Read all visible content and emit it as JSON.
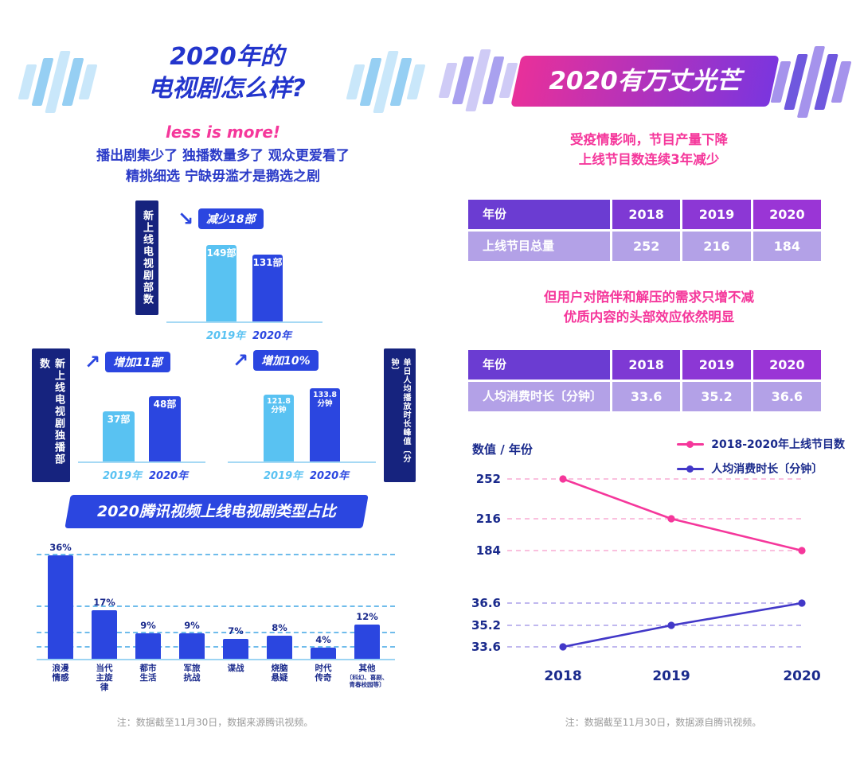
{
  "left": {
    "title_lines": [
      "2020年的",
      "电视剧怎么样?"
    ],
    "tagline": "less is more!",
    "intro_lines": [
      "播出剧集少了 独播数量多了 观众更爱看了",
      "精挑细选 宁缺毋滥才是鹅选之剧"
    ],
    "note": "注：数据截至11月30日，数据来源腾讯视频。"
  },
  "right": {
    "title": "2020有万丈光芒",
    "para1": [
      "受疫情影响，节目产量下降",
      "上线节目数连续3年减少"
    ],
    "para2": [
      "但用户对陪伴和解压的需求只增不减",
      "优质内容的头部效应依然明显"
    ],
    "note": "注：数据截至11月30日，数据源自腾讯视频。"
  },
  "colors": {
    "royal_blue": "#2B46E0",
    "light_blue": "#59C2F2",
    "navy": "#16237E",
    "pink": "#F5379B",
    "purple_line": "#4238C8",
    "table_header_purple": "#7E39D4",
    "table_row_lavender": "#B3A1E7"
  },
  "chart_data": [
    {
      "id": "new_series_count",
      "type": "bar",
      "title": "新上线电视剧部数",
      "categories": [
        "2019年",
        "2020年"
      ],
      "values": [
        149,
        131
      ],
      "bar_labels": [
        [
          "149部"
        ],
        [
          "131部"
        ]
      ],
      "badge": "减少18部",
      "trend": "down",
      "label_side": "left"
    },
    {
      "id": "exclusive_count",
      "type": "bar",
      "title": "新上线电视剧独播部数",
      "categories": [
        "2019年",
        "2020年"
      ],
      "values": [
        37,
        48
      ],
      "bar_labels": [
        [
          "37部"
        ],
        [
          "48部"
        ]
      ],
      "badge": "增加11部",
      "trend": "up",
      "label_side": "left"
    },
    {
      "id": "daily_peak",
      "type": "bar",
      "title": "单日人均播放时长峰值〔分钟〕",
      "categories": [
        "2019年",
        "2020年"
      ],
      "values": [
        121.8,
        133.8
      ],
      "bar_labels": [
        [
          "121.8",
          "分钟"
        ],
        [
          "133.8",
          "分钟"
        ]
      ],
      "badge": "增加10%",
      "trend": "up",
      "label_side": "right"
    },
    {
      "id": "genre_share",
      "type": "bar",
      "title": "2020腾讯视频上线电视剧类型占比",
      "categories": [
        "浪漫情感",
        "当代主旋律",
        "都市生活",
        "军旅抗战",
        "谍战",
        "烧脑悬疑",
        "时代传奇",
        "其他"
      ],
      "category_lines": [
        [
          "浪漫",
          "情感"
        ],
        [
          "当代",
          "主旋",
          "律"
        ],
        [
          "都市",
          "生活"
        ],
        [
          "军旅",
          "抗战"
        ],
        [
          "谍战"
        ],
        [
          "烧脑",
          "悬疑"
        ],
        [
          "时代",
          "传奇"
        ],
        [
          "其他"
        ]
      ],
      "values": [
        36,
        17,
        9,
        9,
        7,
        8,
        4,
        12
      ],
      "value_labels": [
        "36%",
        "17%",
        "9%",
        "9%",
        "7%",
        "8%",
        "4%",
        "12%"
      ],
      "unit": "%",
      "other_note": "〔科幻、喜剧、青春校园等〕"
    },
    {
      "id": "programs_table",
      "type": "table",
      "headers": [
        "年份",
        "2018",
        "2019",
        "2020"
      ],
      "rows": [
        [
          "上线节目总量",
          "252",
          "216",
          "184"
        ]
      ]
    },
    {
      "id": "consumption_table",
      "type": "table",
      "headers": [
        "年份",
        "2018",
        "2019",
        "2020"
      ],
      "rows": [
        [
          "人均消费时长〔分钟〕",
          "33.6",
          "35.2",
          "36.6"
        ]
      ]
    },
    {
      "id": "trend_lines",
      "type": "line",
      "axis_label": "数值 / 年份",
      "x": [
        "2018",
        "2019",
        "2020"
      ],
      "series": [
        {
          "name": "2018-2020年上线节目数",
          "color": "#F5379B",
          "values": [
            252,
            216,
            184
          ]
        },
        {
          "name": "人均消费时长〔分钟〕",
          "color": "#4238C8",
          "values": [
            33.6,
            35.2,
            36.6
          ]
        }
      ],
      "legend_position": "top-right",
      "grid": "dashed"
    }
  ]
}
